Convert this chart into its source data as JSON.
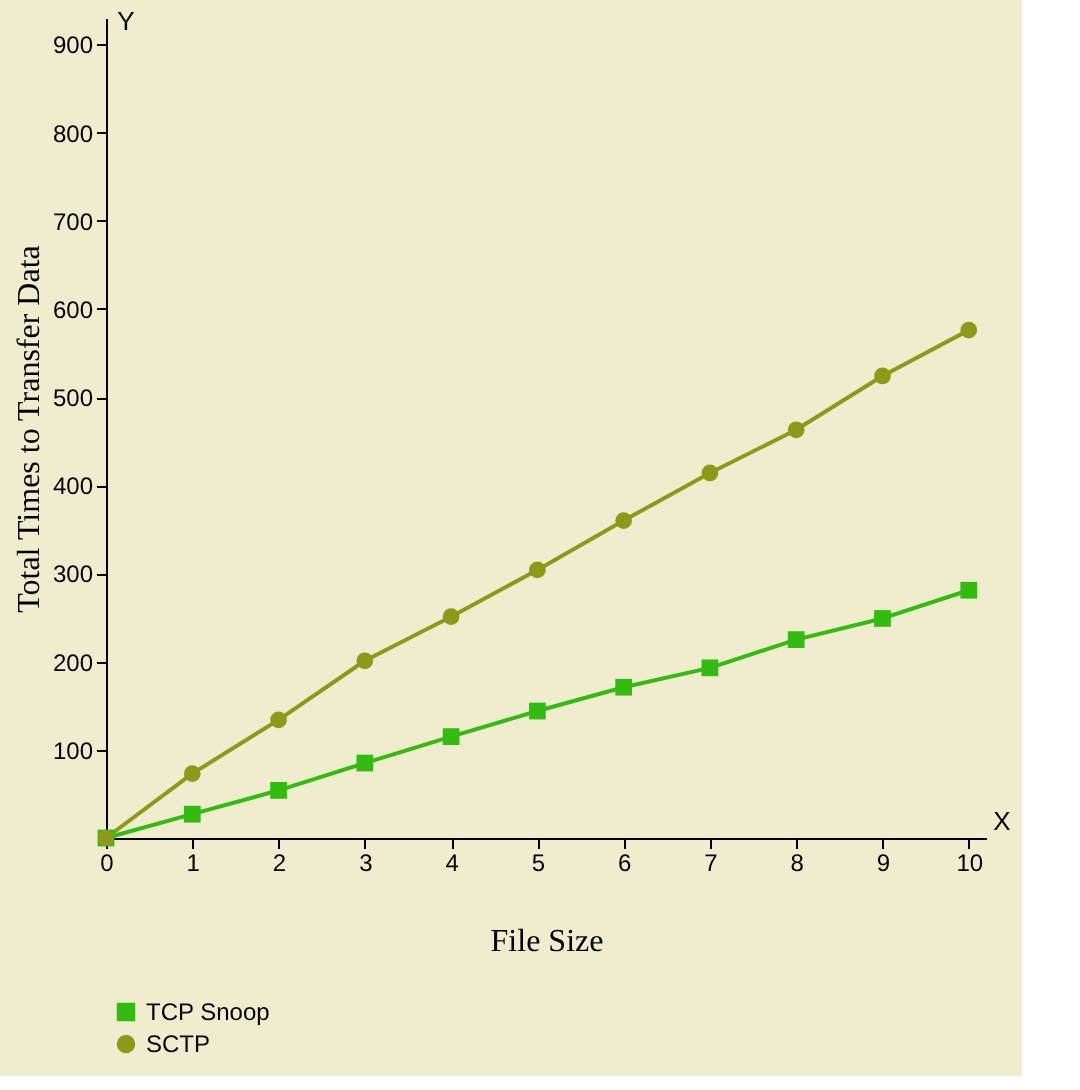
{
  "chart_data": {
    "type": "line",
    "xlabel": "File Size",
    "ylabel": "Total Times to Transfer Data",
    "x": [
      0,
      1,
      2,
      3,
      4,
      5,
      6,
      7,
      8,
      9,
      10
    ],
    "series": [
      {
        "name": "TCP Snoop",
        "color": "#33bb11",
        "marker": "square",
        "values": [
          0,
          27,
          54,
          85,
          115,
          144,
          171,
          193,
          225,
          249,
          281
        ]
      },
      {
        "name": "SCTP",
        "color": "#8c9a1a",
        "marker": "circle",
        "values": [
          0,
          73,
          134,
          201,
          251,
          304,
          360,
          414,
          463,
          524,
          576
        ]
      }
    ],
    "xlim": [
      0,
      10.2
    ],
    "ylim": [
      0,
      930
    ],
    "xticks": [
      0,
      1,
      2,
      3,
      4,
      5,
      6,
      7,
      8,
      9,
      10
    ],
    "yticks": [
      100,
      200,
      300,
      400,
      500,
      600,
      700,
      800,
      900
    ],
    "annotations": [
      "X",
      "Y"
    ],
    "grid": false,
    "legend": "bottom",
    "line_style": "solid"
  }
}
